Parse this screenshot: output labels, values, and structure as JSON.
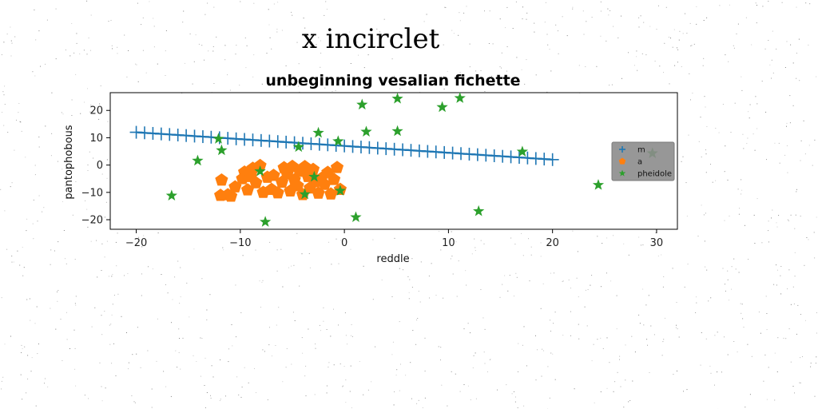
{
  "figure": {
    "suptitle": "x incirclet"
  },
  "chart_data": {
    "type": "scatter",
    "title": "unbeginning vesalian fichette",
    "xlabel": "reddle",
    "ylabel": "pantophobous",
    "xlim": [
      -22.5,
      32
    ],
    "ylim": [
      -23.5,
      26.5
    ],
    "xticks": [
      -20,
      -10,
      0,
      10,
      20,
      30
    ],
    "yticks": [
      -20,
      -10,
      0,
      10,
      20
    ],
    "grid": false,
    "legend_position": "right",
    "series": [
      {
        "name": "m",
        "kind": "line+plus",
        "color": "#1f77b4",
        "x": [
          -20.0,
          -19.2,
          -18.4,
          -17.6,
          -16.8,
          -16.0,
          -15.2,
          -14.4,
          -13.6,
          -12.8,
          -12.0,
          -11.2,
          -10.4,
          -9.6,
          -8.8,
          -8.0,
          -7.2,
          -6.4,
          -5.6,
          -4.8,
          -4.0,
          -3.2,
          -2.4,
          -1.6,
          -0.8,
          0.0,
          0.8,
          1.6,
          2.4,
          3.2,
          4.0,
          4.8,
          5.6,
          6.4,
          7.2,
          8.0,
          8.8,
          9.6,
          10.4,
          11.2,
          12.0,
          12.8,
          13.6,
          14.4,
          15.2,
          16.0,
          16.8,
          17.6,
          18.4,
          19.2,
          20.0
        ],
        "y": [
          12.0,
          11.8,
          11.6,
          11.4,
          11.2,
          11.0,
          10.8,
          10.6,
          10.4,
          10.2,
          10.0,
          9.8,
          9.6,
          9.4,
          9.2,
          9.0,
          8.8,
          8.6,
          8.4,
          8.2,
          8.0,
          7.8,
          7.6,
          7.4,
          7.2,
          7.0,
          6.8,
          6.6,
          6.4,
          6.2,
          6.0,
          5.8,
          5.6,
          5.4,
          5.2,
          5.0,
          4.8,
          4.6,
          4.4,
          4.2,
          4.0,
          3.8,
          3.6,
          3.4,
          3.2,
          3.0,
          2.8,
          2.6,
          2.4,
          2.2,
          2.0
        ]
      },
      {
        "name": "a",
        "kind": "pentagon",
        "color": "#ff7f0e",
        "x": [
          -11.8,
          -11.2,
          -10.9,
          -10.5,
          -9.8,
          -9.6,
          -9.3,
          -9.0,
          -8.8,
          -8.5,
          -8.1,
          -7.8,
          -7.4,
          -7.0,
          -6.8,
          -6.4,
          -6.0,
          -5.8,
          -5.5,
          -5.2,
          -5.0,
          -4.8,
          -4.5,
          -4.3,
          -4.0,
          -3.8,
          -3.5,
          -3.3,
          -3.0,
          -2.8,
          -2.5,
          -2.2,
          -1.9,
          -1.6,
          -1.3,
          -1.0,
          -0.7,
          -0.4,
          -11.9
        ],
        "y": [
          -5.5,
          -10.9,
          -11.4,
          -8.0,
          -5.0,
          -2.6,
          -9.1,
          -4.2,
          -1.2,
          -6.5,
          -0.2,
          -10.0,
          -4.5,
          -8.9,
          -3.8,
          -10.2,
          -6.3,
          -1.0,
          -3.3,
          -9.5,
          -0.5,
          -5.4,
          -7.6,
          -2.3,
          -10.8,
          -0.6,
          -4.2,
          -8.4,
          -1.6,
          -6.1,
          -10.3,
          -4.9,
          -7.1,
          -2.7,
          -10.6,
          -5.3,
          -0.9,
          -8.9,
          -11.1
        ]
      },
      {
        "name": "pheidole",
        "kind": "star",
        "color": "#2ca02c",
        "x": [
          -16.6,
          -14.1,
          -12.1,
          -11.8,
          -8.1,
          -7.6,
          -4.4,
          -3.8,
          -2.9,
          -2.5,
          -0.6,
          -0.4,
          1.1,
          1.7,
          2.1,
          5.1,
          5.1,
          9.4,
          11.1,
          12.9,
          17.1,
          24.4,
          29.6
        ],
        "y": [
          -11.2,
          1.6,
          9.6,
          5.4,
          -2.3,
          -20.8,
          6.6,
          -10.7,
          -4.3,
          11.8,
          8.7,
          -9.4,
          -19.1,
          22.1,
          12.2,
          24.3,
          12.4,
          21.2,
          24.5,
          -16.9,
          4.9,
          -7.3,
          4.3
        ]
      }
    ]
  }
}
